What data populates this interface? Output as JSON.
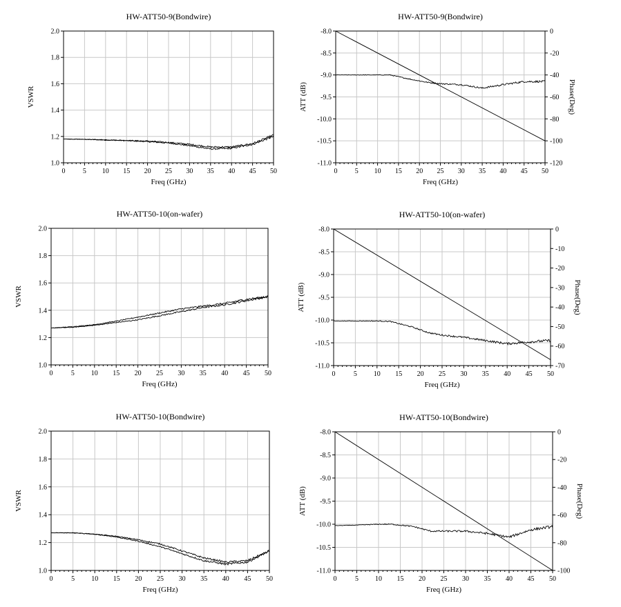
{
  "chart_data": [
    {
      "type": "line",
      "title": "HW-ATT50-9(Bondwire)",
      "xlabel": "Freq (GHz)",
      "ylabel": "VSWR",
      "xlim": [
        0,
        50
      ],
      "ylim": [
        1.0,
        2.0
      ],
      "xticks": [
        "0",
        "5",
        "10",
        "15",
        "20",
        "25",
        "30",
        "35",
        "40",
        "45",
        "50"
      ],
      "yticks": [
        "1.0",
        "1.2",
        "1.4",
        "1.6",
        "1.8",
        "2.0"
      ],
      "grid": true,
      "series": [
        {
          "noise": 0.004,
          "x": [
            0,
            5,
            10,
            15,
            20,
            25,
            30,
            35,
            40,
            45,
            50
          ],
          "y": [
            1.18,
            1.178,
            1.172,
            1.168,
            1.16,
            1.15,
            1.13,
            1.105,
            1.11,
            1.14,
            1.2
          ]
        },
        {
          "noise": 0.004,
          "x": [
            0,
            5,
            10,
            15,
            20,
            25,
            30,
            35,
            40,
            45,
            50
          ],
          "y": [
            1.18,
            1.178,
            1.175,
            1.17,
            1.165,
            1.155,
            1.14,
            1.12,
            1.12,
            1.145,
            1.21
          ]
        }
      ]
    },
    {
      "type": "line",
      "title": "HW-ATT50-9(Bondwire)",
      "xlabel": "Freq (GHz)",
      "ylabel": "ATT (dB)",
      "y2label": "Phase(Deg)",
      "xlim": [
        0,
        50
      ],
      "ylim": [
        -11.0,
        -8.0
      ],
      "y2lim": [
        -120,
        0
      ],
      "xticks": [
        "0",
        "5",
        "10",
        "15",
        "20",
        "25",
        "30",
        "35",
        "40",
        "45",
        "50"
      ],
      "yticks": [
        "-11.0",
        "-10.5",
        "-10.0",
        "-9.5",
        "-9.0",
        "-8.5",
        "-8.0"
      ],
      "y2ticks": [
        "-120",
        "-100",
        "-80",
        "-60",
        "-40",
        "-20",
        "0"
      ],
      "grid": true,
      "series": [
        {
          "axis": "left",
          "noise": 0.012,
          "x": [
            0,
            5,
            10,
            13,
            18,
            22,
            25,
            30,
            35,
            40,
            45,
            50
          ],
          "y": [
            -9.0,
            -9.0,
            -9.0,
            -9.0,
            -9.1,
            -9.17,
            -9.2,
            -9.22,
            -9.3,
            -9.22,
            -9.15,
            -9.15
          ]
        },
        {
          "axis": "right",
          "noise": 0,
          "x": [
            0,
            50
          ],
          "y": [
            0,
            -100
          ]
        }
      ]
    },
    {
      "type": "line",
      "title": "HW-ATT50-10(on-wafer)",
      "xlabel": "Freq (GHz)",
      "ylabel": "VSWR",
      "xlim": [
        0,
        50
      ],
      "ylim": [
        1.0,
        2.0
      ],
      "xticks": [
        "0",
        "5",
        "10",
        "15",
        "20",
        "25",
        "30",
        "35",
        "40",
        "45",
        "50"
      ],
      "yticks": [
        "1.0",
        "1.2",
        "1.4",
        "1.6",
        "1.8",
        "2.0"
      ],
      "grid": true,
      "series": [
        {
          "noise": 0.004,
          "x": [
            0,
            5,
            10,
            15,
            20,
            25,
            30,
            35,
            40,
            45,
            50
          ],
          "y": [
            1.27,
            1.275,
            1.29,
            1.31,
            1.33,
            1.36,
            1.39,
            1.42,
            1.44,
            1.47,
            1.5
          ]
        },
        {
          "noise": 0.004,
          "x": [
            0,
            5,
            10,
            15,
            20,
            25,
            30,
            35,
            40,
            45,
            50
          ],
          "y": [
            1.27,
            1.28,
            1.295,
            1.32,
            1.35,
            1.38,
            1.41,
            1.43,
            1.45,
            1.48,
            1.5
          ]
        }
      ]
    },
    {
      "type": "line",
      "title": "HW-ATT50-10(on-wafer)",
      "xlabel": "Freq (GHz)",
      "ylabel": "ATT (dB)",
      "y2label": "Phase(Deg)",
      "xlim": [
        0,
        50
      ],
      "ylim": [
        -11.0,
        -8.0
      ],
      "y2lim": [
        -70,
        0
      ],
      "xticks": [
        "0",
        "5",
        "10",
        "15",
        "20",
        "25",
        "30",
        "35",
        "40",
        "45",
        "50"
      ],
      "yticks": [
        "-11.0",
        "-10.5",
        "-10.0",
        "-9.5",
        "-9.0",
        "-8.5",
        "-8.0"
      ],
      "y2ticks": [
        "-70",
        "-60",
        "-50",
        "-40",
        "-30",
        "-20",
        "-10",
        "0"
      ],
      "grid": true,
      "series": [
        {
          "axis": "left",
          "noise": 0.015,
          "x": [
            0,
            5,
            10,
            13,
            18,
            22,
            25,
            30,
            35,
            40,
            45,
            50
          ],
          "y": [
            -10.02,
            -10.02,
            -10.02,
            -10.03,
            -10.15,
            -10.28,
            -10.33,
            -10.38,
            -10.45,
            -10.52,
            -10.48,
            -10.45
          ]
        },
        {
          "axis": "right",
          "noise": 0,
          "x": [
            0,
            50
          ],
          "y": [
            0,
            -67
          ]
        }
      ]
    },
    {
      "type": "line",
      "title": "HW-ATT50-10(Bondwire)",
      "xlabel": "Freq (GHz)",
      "ylabel": "VSWR",
      "xlim": [
        0,
        50
      ],
      "ylim": [
        1.0,
        2.0
      ],
      "xticks": [
        "0",
        "5",
        "10",
        "15",
        "20",
        "25",
        "30",
        "35",
        "40",
        "45",
        "50"
      ],
      "yticks": [
        "1.0",
        "1.2",
        "1.4",
        "1.6",
        "1.8",
        "2.0"
      ],
      "grid": true,
      "series": [
        {
          "noise": 0.004,
          "x": [
            0,
            5,
            10,
            15,
            20,
            25,
            30,
            35,
            40,
            45,
            50
          ],
          "y": [
            1.27,
            1.27,
            1.26,
            1.24,
            1.21,
            1.17,
            1.12,
            1.07,
            1.045,
            1.06,
            1.14
          ]
        },
        {
          "noise": 0.004,
          "x": [
            0,
            5,
            10,
            15,
            20,
            25,
            30,
            35,
            40,
            45,
            50
          ],
          "y": [
            1.27,
            1.27,
            1.26,
            1.245,
            1.22,
            1.19,
            1.14,
            1.09,
            1.06,
            1.07,
            1.14
          ]
        }
      ]
    },
    {
      "type": "line",
      "title": "HW-ATT50-10(Bondwire)",
      "xlabel": "Freq (GHz)",
      "ylabel": "ATT (dB)",
      "y2label": "Phase(Deg)",
      "xlim": [
        0,
        50
      ],
      "ylim": [
        -11.0,
        -8.0
      ],
      "y2lim": [
        -100,
        0
      ],
      "xticks": [
        "0",
        "5",
        "10",
        "15",
        "20",
        "25",
        "30",
        "35",
        "40",
        "45",
        "50"
      ],
      "yticks": [
        "-11.0",
        "-10.5",
        "-10.0",
        "-9.5",
        "-9.0",
        "-8.5",
        "-8.0"
      ],
      "y2ticks": [
        "-100",
        "-80",
        "-60",
        "-40",
        "-20",
        "0"
      ],
      "grid": true,
      "series": [
        {
          "axis": "left",
          "noise": 0.015,
          "x": [
            0,
            5,
            10,
            13,
            18,
            22,
            25,
            30,
            35,
            40,
            45,
            50
          ],
          "y": [
            -10.03,
            -10.02,
            -10.0,
            -10.0,
            -10.05,
            -10.15,
            -10.15,
            -10.15,
            -10.2,
            -10.28,
            -10.12,
            -10.05
          ]
        },
        {
          "axis": "right",
          "noise": 0,
          "x": [
            0,
            50
          ],
          "y": [
            0,
            -100
          ]
        }
      ]
    }
  ]
}
